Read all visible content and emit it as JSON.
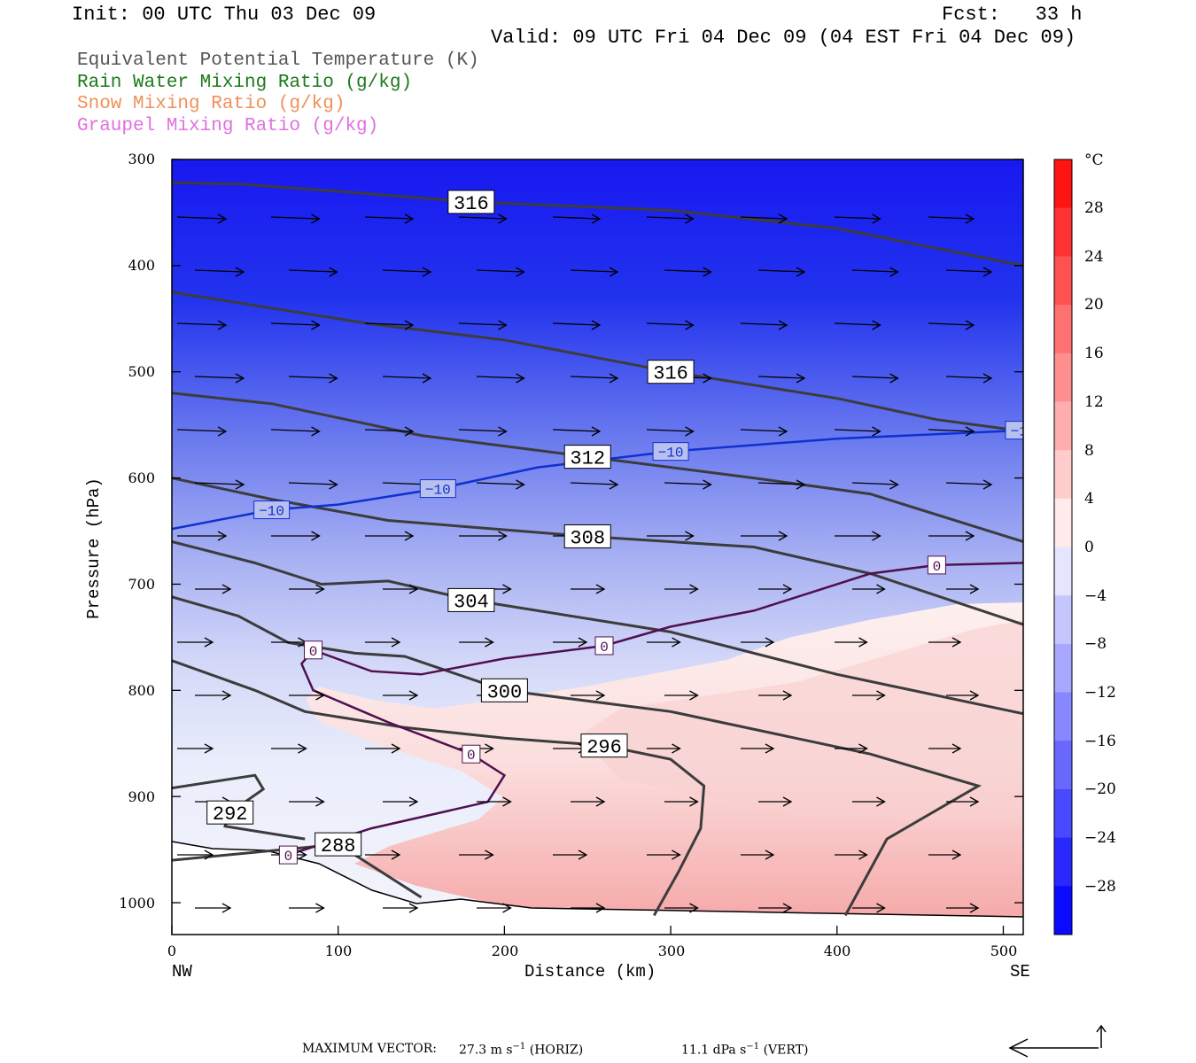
{
  "header": {
    "init": "Init: 00 UTC Thu 03 Dec 09",
    "fcst": "Fcst:   33 h",
    "valid": "Valid: 09 UTC Fri 04 Dec 09 (04 EST Fri 04 Dec 09)"
  },
  "legend": [
    {
      "label": "Equivalent Potential Temperature (K)",
      "color": "#555555"
    },
    {
      "label": "Rain Water Mixing Ratio (g/kg)",
      "color": "#1a7a1a"
    },
    {
      "label": "Snow Mixing Ratio (g/kg)",
      "color": "#f0905a"
    },
    {
      "label": "Graupel Mixing Ratio (g/kg)",
      "color": "#e070e0"
    }
  ],
  "axes": {
    "ylabel": "Pressure (hPa)",
    "xlabel": "Distance (km)",
    "left_end": "NW",
    "right_end": "SE",
    "y_ticks": [
      "300",
      "400",
      "500",
      "600",
      "700",
      "800",
      "900",
      "1000"
    ],
    "x_ticks": [
      "0",
      "100",
      "200",
      "300",
      "400",
      "500"
    ]
  },
  "colorbar": {
    "unit": "°C",
    "labels": [
      "28",
      "24",
      "20",
      "16",
      "12",
      "8",
      "4",
      "0",
      "−4",
      "−8",
      "−12",
      "−16",
      "−20",
      "−24",
      "−28"
    ],
    "min": -32,
    "max": 32,
    "step": 4
  },
  "footer": {
    "prefix": "MAXIMUM VECTOR:",
    "horiz_value": "27.3 m s",
    "horiz_exp": "−1",
    "horiz_unit": "(HORIZ)",
    "vert_value": "11.1 dPa s",
    "vert_exp": "−1",
    "vert_unit": "(VERT)"
  },
  "chart_data": {
    "type": "contour cross-section",
    "x_range_km": [
      0,
      512
    ],
    "y_range_hpa": [
      300,
      1030
    ],
    "y_scale": "linear (pressure, inverted)",
    "shaded_field": "temperature (°C)",
    "theta_e_contours": [
      {
        "label": "316",
        "points": [
          [
            0,
            322
          ],
          [
            40,
            323
          ],
          [
            100,
            330
          ],
          [
            180,
            340
          ],
          [
            300,
            348
          ],
          [
            400,
            365
          ],
          [
            512,
            400
          ]
        ]
      },
      {
        "label": "316",
        "points": [
          [
            0,
            425
          ],
          [
            60,
            440
          ],
          [
            120,
            455
          ],
          [
            200,
            470
          ],
          [
            300,
            500
          ],
          [
            400,
            525
          ],
          [
            460,
            545
          ],
          [
            512,
            556
          ]
        ]
      },
      {
        "label": "312",
        "points": [
          [
            0,
            520
          ],
          [
            60,
            530
          ],
          [
            150,
            560
          ],
          [
            250,
            580
          ],
          [
            350,
            600
          ],
          [
            420,
            615
          ],
          [
            512,
            660
          ]
        ]
      },
      {
        "label": "308",
        "points": [
          [
            0,
            600
          ],
          [
            60,
            620
          ],
          [
            130,
            640
          ],
          [
            250,
            655
          ],
          [
            350,
            665
          ],
          [
            420,
            690
          ],
          [
            512,
            738
          ]
        ]
      },
      {
        "label": "304",
        "points": [
          [
            0,
            660
          ],
          [
            50,
            680
          ],
          [
            90,
            700
          ],
          [
            130,
            697
          ],
          [
            180,
            715
          ],
          [
            300,
            745
          ],
          [
            400,
            785
          ],
          [
            512,
            822
          ]
        ]
      },
      {
        "label": "300",
        "points": [
          [
            0,
            712
          ],
          [
            40,
            730
          ],
          [
            70,
            755
          ],
          [
            110,
            765
          ],
          [
            140,
            768
          ],
          [
            200,
            800
          ],
          [
            300,
            820
          ],
          [
            420,
            860
          ],
          [
            485,
            890
          ],
          [
            430,
            940
          ],
          [
            405,
            1012
          ]
        ]
      },
      {
        "label": "296",
        "points": [
          [
            0,
            772
          ],
          [
            50,
            800
          ],
          [
            80,
            820
          ],
          [
            140,
            835
          ],
          [
            200,
            845
          ],
          [
            260,
            852
          ],
          [
            300,
            865
          ],
          [
            320,
            890
          ],
          [
            318,
            930
          ],
          [
            305,
            970
          ],
          [
            290,
            1012
          ]
        ]
      },
      {
        "label": "292",
        "points": [
          [
            0,
            892
          ],
          [
            50,
            880
          ],
          [
            55,
            893
          ],
          [
            35,
            915
          ],
          [
            32,
            928
          ],
          [
            80,
            940
          ]
        ]
      },
      {
        "label": "288",
        "points": [
          [
            0,
            960
          ],
          [
            100,
            945
          ],
          [
            150,
            995
          ]
        ]
      }
    ],
    "temperature_isotherms": [
      {
        "label": "−10",
        "color": "#1030d0",
        "points": [
          [
            0,
            648
          ],
          [
            60,
            630
          ],
          [
            100,
            625
          ],
          [
            160,
            610
          ],
          [
            220,
            590
          ],
          [
            300,
            575
          ],
          [
            400,
            563
          ],
          [
            512,
            555
          ]
        ]
      },
      {
        "label": "0",
        "color": "#501050",
        "points": [
          [
            512,
            680
          ],
          [
            460,
            682
          ],
          [
            420,
            690
          ],
          [
            350,
            725
          ],
          [
            300,
            740
          ],
          [
            260,
            758
          ],
          [
            200,
            770
          ],
          [
            150,
            785
          ],
          [
            120,
            782
          ],
          [
            85,
            762
          ],
          [
            78,
            775
          ],
          [
            85,
            800
          ],
          [
            130,
            830
          ],
          [
            180,
            860
          ],
          [
            200,
            880
          ],
          [
            190,
            905
          ],
          [
            120,
            930
          ],
          [
            70,
            955
          ]
        ]
      }
    ],
    "wind_vector_scale": {
      "horiz": "27.3 m s-1",
      "vert": "11.1 dPa s-1"
    }
  }
}
